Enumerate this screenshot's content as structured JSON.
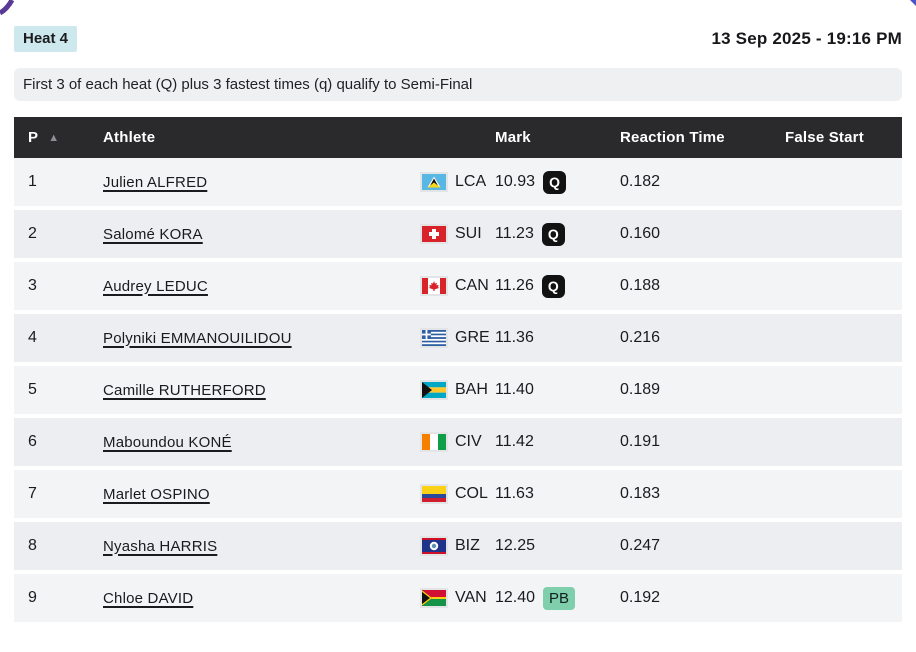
{
  "header": {
    "heat_label": "Heat 4",
    "datetime": "13 Sep 2025 - 19:16 PM"
  },
  "qualification_note": "First 3 of each heat (Q) plus 3 fastest times (q) qualify to Semi-Final",
  "table": {
    "columns": {
      "position": "P",
      "sort_indicator": "▲",
      "athlete": "Athlete",
      "mark": "Mark",
      "reaction_time": "Reaction Time",
      "false_start": "False Start"
    },
    "rows": [
      {
        "position": "1",
        "athlete": "Julien ALFRED",
        "noc": "LCA",
        "mark": "10.93",
        "mark_badge": "Q",
        "reaction_time": "0.182",
        "false_start": ""
      },
      {
        "position": "2",
        "athlete": "Salomé KORA",
        "noc": "SUI",
        "mark": "11.23",
        "mark_badge": "Q",
        "reaction_time": "0.160",
        "false_start": ""
      },
      {
        "position": "3",
        "athlete": "Audrey LEDUC",
        "noc": "CAN",
        "mark": "11.26",
        "mark_badge": "Q",
        "reaction_time": "0.188",
        "false_start": ""
      },
      {
        "position": "4",
        "athlete": "Polyniki EMMANOUILIDOU",
        "noc": "GRE",
        "mark": "11.36",
        "mark_badge": "",
        "reaction_time": "0.216",
        "false_start": ""
      },
      {
        "position": "5",
        "athlete": "Camille RUTHERFORD",
        "noc": "BAH",
        "mark": "11.40",
        "mark_badge": "",
        "reaction_time": "0.189",
        "false_start": ""
      },
      {
        "position": "6",
        "athlete": "Maboundou KONÉ",
        "noc": "CIV",
        "mark": "11.42",
        "mark_badge": "",
        "reaction_time": "0.191",
        "false_start": ""
      },
      {
        "position": "7",
        "athlete": "Marlet OSPINO",
        "noc": "COL",
        "mark": "11.63",
        "mark_badge": "",
        "reaction_time": "0.183",
        "false_start": ""
      },
      {
        "position": "8",
        "athlete": "Nyasha HARRIS",
        "noc": "BIZ",
        "mark": "12.25",
        "mark_badge": "",
        "reaction_time": "0.247",
        "false_start": ""
      },
      {
        "position": "9",
        "athlete": "Chloe DAVID",
        "noc": "VAN",
        "mark": "12.40",
        "mark_badge": "PB",
        "reaction_time": "0.192",
        "false_start": ""
      }
    ]
  },
  "colors": {
    "heat_badge_bg": "#cde9ed",
    "note_bg": "#eef0f2",
    "table_header_bg": "#2a292c",
    "q_badge_bg": "#121212",
    "pb_badge_bg": "#7fceac",
    "row_odd_bg": "#f3f4f6",
    "row_even_bg": "#eceef1"
  }
}
